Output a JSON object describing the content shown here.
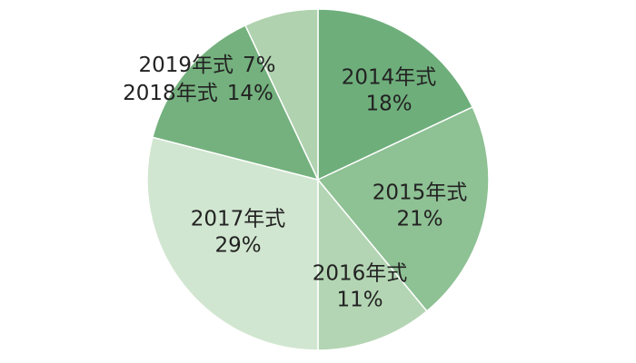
{
  "chart_data": {
    "type": "pie",
    "categories": [
      "2014年式",
      "2015年式",
      "2016年式",
      "2017年式",
      "2018年式",
      "2019年式"
    ],
    "values": [
      18,
      21,
      11,
      29,
      14,
      7
    ],
    "value_labels": [
      "18%",
      "21%",
      "11%",
      "29%",
      "14%",
      "7%"
    ],
    "colors": [
      "#6eae7b",
      "#8ec194",
      "#b3d5b3",
      "#d1e6d0",
      "#74b17e",
      "#b0d2af"
    ]
  }
}
